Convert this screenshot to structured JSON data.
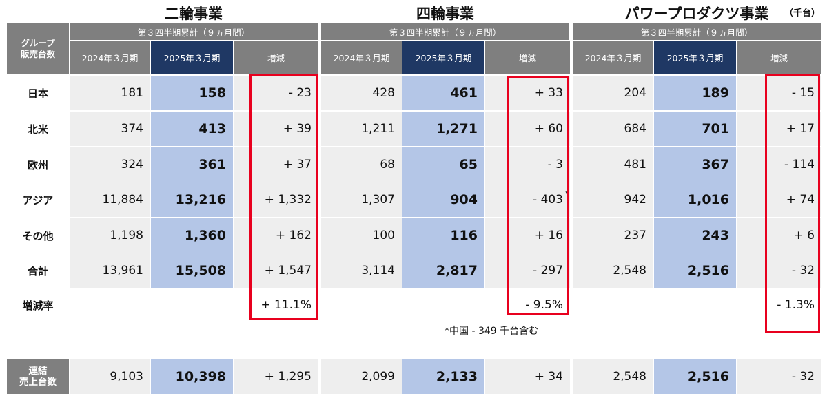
{
  "unit": "（千台）",
  "left_header": "グループ\n販売台数",
  "period_label": "第３四半期累計（９ヵ月間）",
  "col_prev": "2024年３月期",
  "col_curr": "2025年３月期",
  "col_diff": "増減",
  "rows": [
    "日本",
    "北米",
    "欧州",
    "アジア",
    "その他",
    "合計"
  ],
  "rate_label": "増減率",
  "consolidated_label": "連結\n売上台数",
  "segments": [
    {
      "title": "二輪事業",
      "values": [
        {
          "prev": "181",
          "curr": "158",
          "diff": "- 23"
        },
        {
          "prev": "374",
          "curr": "413",
          "diff": "+ 39"
        },
        {
          "prev": "324",
          "curr": "361",
          "diff": "+ 37"
        },
        {
          "prev": "11,884",
          "curr": "13,216",
          "diff": "+ 1,332"
        },
        {
          "prev": "1,198",
          "curr": "1,360",
          "diff": "+ 162"
        },
        {
          "prev": "13,961",
          "curr": "15,508",
          "diff": "+ 1,547"
        }
      ],
      "rate": "+ 11.1%",
      "consolidated": {
        "prev": "9,103",
        "curr": "10,398",
        "diff": "+ 1,295"
      }
    },
    {
      "title": "四輪事業",
      "values": [
        {
          "prev": "428",
          "curr": "461",
          "diff": "+ 33"
        },
        {
          "prev": "1,211",
          "curr": "1,271",
          "diff": "+ 60"
        },
        {
          "prev": "68",
          "curr": "65",
          "diff": "- 3"
        },
        {
          "prev": "1,307",
          "curr": "904",
          "diff": "- 403"
        },
        {
          "prev": "100",
          "curr": "116",
          "diff": "+ 16"
        },
        {
          "prev": "3,114",
          "curr": "2,817",
          "diff": "- 297"
        }
      ],
      "rate": "- 9.5%",
      "footnote_mark": "*",
      "footnote": "*中国 - 349 千台含む",
      "consolidated": {
        "prev": "2,099",
        "curr": "2,133",
        "diff": "+ 34"
      }
    },
    {
      "title": "パワープロダクツ事業",
      "values": [
        {
          "prev": "204",
          "curr": "189",
          "diff": "- 15"
        },
        {
          "prev": "684",
          "curr": "701",
          "diff": "+ 17"
        },
        {
          "prev": "481",
          "curr": "367",
          "diff": "- 114"
        },
        {
          "prev": "942",
          "curr": "1,016",
          "diff": "+ 74"
        },
        {
          "prev": "237",
          "curr": "243",
          "diff": "+ 6"
        },
        {
          "prev": "2,548",
          "curr": "2,516",
          "diff": "- 32"
        }
      ],
      "rate": "- 1.3%",
      "consolidated": {
        "prev": "2,548",
        "curr": "2,516",
        "diff": "- 32"
      }
    }
  ]
}
